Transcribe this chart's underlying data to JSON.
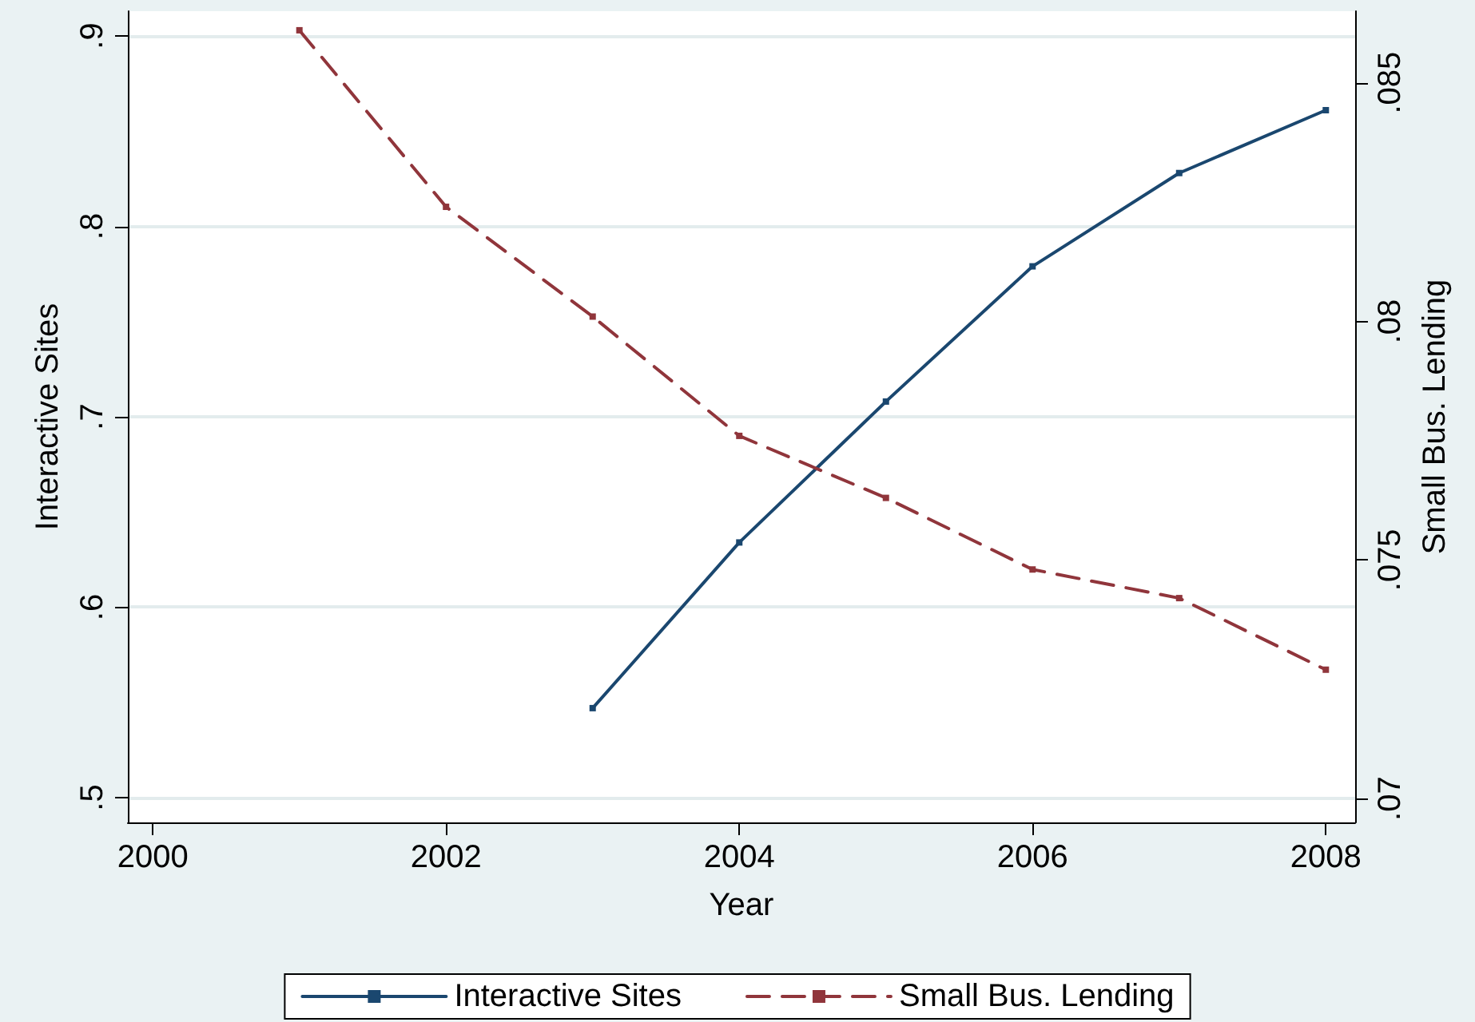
{
  "chart_data": {
    "type": "line",
    "xlabel": "Year",
    "ylabel": "Interactive Sites",
    "y2label": "Small Bus. Lending",
    "x": [
      2001,
      2002,
      2003,
      2004,
      2005,
      2006,
      2007,
      2008
    ],
    "xlim": [
      1999.83,
      2008.2
    ],
    "xticks": [
      2000,
      2002,
      2004,
      2006,
      2008
    ],
    "ylim": [
      0.487,
      0.913
    ],
    "yticks": [
      {
        "value": 0.5,
        "label": ".5"
      },
      {
        "value": 0.6,
        "label": ".6"
      },
      {
        "value": 0.7,
        "label": ".7"
      },
      {
        "value": 0.8,
        "label": ".8"
      },
      {
        "value": 0.9,
        "label": ".9"
      }
    ],
    "y2lim": [
      0.0695,
      0.0865
    ],
    "y2ticks": [
      {
        "value": 0.07,
        "label": ".07"
      },
      {
        "value": 0.075,
        "label": ".075"
      },
      {
        "value": 0.08,
        "label": ".08"
      },
      {
        "value": 0.085,
        "label": ".085"
      }
    ],
    "series": [
      {
        "name": "Interactive Sites",
        "color": "#1a476f",
        "values": [
          null,
          null,
          0.547,
          0.634,
          0.708,
          0.779,
          0.828,
          0.861
        ],
        "line_style": "solid"
      },
      {
        "name": "Small Bus. Lending",
        "color": "#90353b",
        "axis": "y2",
        "values": [
          0.0861,
          0.0824,
          0.0801,
          0.0776,
          0.0763,
          0.0748,
          0.0742,
          0.0727
        ],
        "line_style": "dashed"
      }
    ],
    "grid": "y",
    "legend": "bottom",
    "marker": "square"
  }
}
